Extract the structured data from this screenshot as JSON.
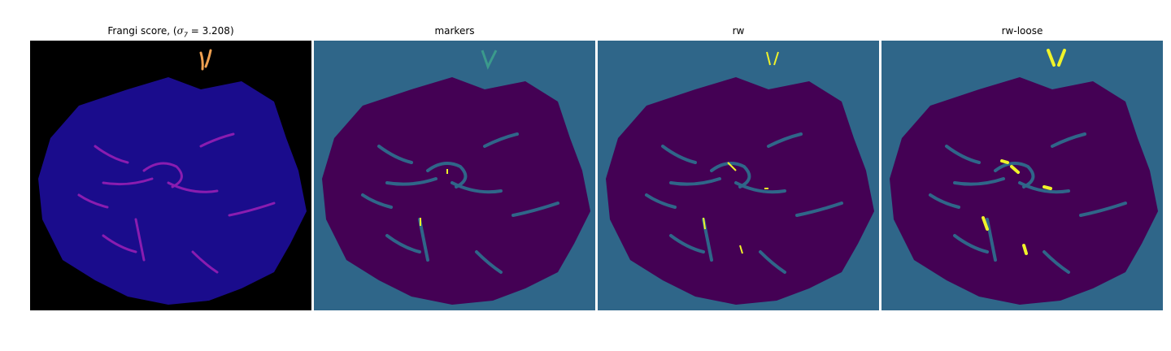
{
  "panels": [
    {
      "id": "frangi",
      "title_prefix": "Frangi score, (",
      "sigma_symbol": "σ",
      "sigma_sub": "7",
      "sigma_rest": " = 3.208)"
    },
    {
      "id": "markers",
      "title": "markers"
    },
    {
      "id": "rw",
      "title": "rw"
    },
    {
      "id": "rw-loose",
      "title": "rw-loose"
    }
  ],
  "colors": {
    "frangi_background": "#000000",
    "frangi_tissue": "#1a0c8c",
    "frangi_vessel": "#8a1cb0",
    "frangi_hot": "#f0a050",
    "label_background": "#2f6689",
    "label_tissue": "#440154",
    "label_highlight": "#f0f32a",
    "label_mid": "#3b9a8c"
  }
}
